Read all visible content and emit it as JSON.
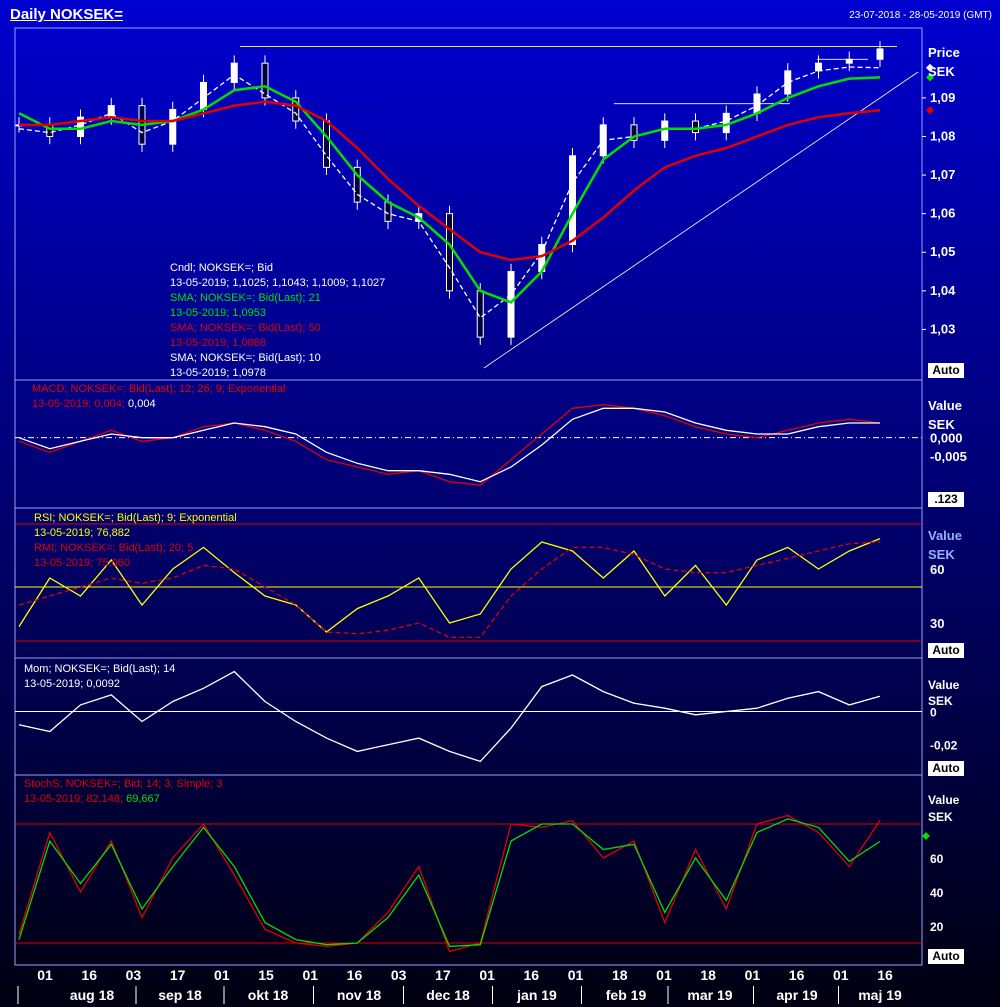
{
  "header": {
    "title": "Daily NOKSEK=",
    "range": "23-07-2018 - 28-05-2019 (GMT)"
  },
  "colors": {
    "bg_top": "#0000cc",
    "bg_bottom": "#000010",
    "green": "#00e000",
    "red": "#e00000",
    "yellow": "#ffff00",
    "white": "#ffffff",
    "frame": "#9aa0ff"
  },
  "panels": {
    "price": {
      "unit_value": "Price",
      "unit_sek": "SEK",
      "auto": "Auto",
      "ticks": [
        "1,09",
        "1,08",
        "1,07",
        "1,06",
        "1,05",
        "1,04",
        "1,03"
      ],
      "legend": [
        {
          "text": "Cndl; NOKSEK=; Bid",
          "color": "#ffffff"
        },
        {
          "text": "13-05-2019; 1,1025; 1,1043; 1,1009; 1,1027",
          "color": "#ffffff"
        },
        {
          "text": "SMA; NOKSEK=; Bid(Last);  21",
          "color": "#00e000"
        },
        {
          "text": "13-05-2019; 1,0953",
          "color": "#00e000"
        },
        {
          "text": "SMA; NOKSEK=; Bid(Last);  50",
          "color": "#e00000"
        },
        {
          "text": "13-05-2019; 1,0868",
          "color": "#e00000"
        },
        {
          "text": "SMA; NOKSEK=; Bid(Last);  10",
          "color": "#ffffff"
        },
        {
          "text": "13-05-2019; 1,0978",
          "color": "#ffffff"
        }
      ]
    },
    "macd": {
      "unit_value": "Value",
      "unit_sek": "SEK",
      "auto": ".123",
      "ticks": [
        "0,000",
        "-0,005"
      ],
      "legend_line1": "MACD; NOKSEK=; Bid(Last);  12; 26; 9; Exponential",
      "legend_line2a": "13-05-2019; 0,004; ",
      "legend_line2b": "0,004"
    },
    "rsi": {
      "unit_value": "Value",
      "unit_sek": "SEK",
      "auto": "Auto",
      "ticks": [
        "60",
        "30"
      ],
      "legend": [
        {
          "text": "RSI; NOKSEK=; Bid(Last);  9; Exponential",
          "color": "#ffff00"
        },
        {
          "text": "13-05-2019; 76,882",
          "color": "#ffff00"
        },
        {
          "text": "RMI; NOKSEK=; Bid(Last);  20; 5",
          "color": "#e00000"
        },
        {
          "text": "13-05-2019; 75,060",
          "color": "#e00000"
        }
      ]
    },
    "mom": {
      "unit_value": "Value",
      "unit_sek": "SEK",
      "auto": "Auto",
      "ticks": [
        "0",
        "-0,02"
      ],
      "legend": [
        {
          "text": "Mom; NOKSEK=; Bid(Last);  14",
          "color": "#ffffff"
        },
        {
          "text": "13-05-2019; 0,0092",
          "color": "#ffffff"
        }
      ]
    },
    "stoch": {
      "unit_value": "Value",
      "unit_sek": "SEK",
      "auto": "Auto",
      "ticks": [
        "60",
        "40",
        "20"
      ],
      "legend_line1": "StochS; NOKSEK=; Bid;  14; 3; Simple; 3",
      "legend_line2a": "13-05-2019; 82,148; ",
      "legend_line2b": "69,667"
    }
  },
  "xaxis": {
    "days": [
      "01",
      "16",
      "03",
      "17",
      "01",
      "15",
      "01",
      "16",
      "03",
      "17",
      "01",
      "16",
      "01",
      "18",
      "01",
      "18",
      "01",
      "16",
      "01",
      "16"
    ],
    "months": [
      "aug 18",
      "sep 18",
      "okt 18",
      "nov 18",
      "dec 18",
      "jan 19",
      "feb 19",
      "mar 19",
      "apr 19",
      "maj 19"
    ]
  },
  "chart_data": [
    {
      "type": "candlestick",
      "title": "Daily NOKSEK=",
      "ylabel": "Price SEK",
      "ylim": [
        1.02,
        1.105
      ],
      "last_candle": {
        "date": "13-05-2019",
        "open": 1.1025,
        "high": 1.1043,
        "low": 1.1009,
        "close": 1.1027
      },
      "x_dates": [
        "2018-07-23",
        "2018-08-01",
        "2018-08-15",
        "2018-09-01",
        "2018-09-12",
        "2018-09-20",
        "2018-10-01",
        "2018-10-10",
        "2018-10-20",
        "2018-11-01",
        "2018-11-12",
        "2018-11-20",
        "2018-12-01",
        "2018-12-10",
        "2018-12-20",
        "2019-01-02",
        "2019-01-10",
        "2019-01-20",
        "2019-02-01",
        "2019-02-10",
        "2019-02-20",
        "2019-03-01",
        "2019-03-10",
        "2019-03-20",
        "2019-04-01",
        "2019-04-10",
        "2019-04-20",
        "2019-05-01",
        "2019-05-13"
      ],
      "close": [
        1.083,
        1.08,
        1.085,
        1.088,
        1.078,
        1.087,
        1.094,
        1.099,
        1.09,
        1.084,
        1.072,
        1.063,
        1.058,
        1.06,
        1.04,
        1.028,
        1.045,
        1.052,
        1.075,
        1.083,
        1.079,
        1.084,
        1.081,
        1.086,
        1.091,
        1.097,
        1.099,
        1.1,
        1.1027
      ],
      "series": [
        {
          "name": "SMA 10",
          "color": "#ffffff",
          "dashed": true,
          "values": [
            1.082,
            1.081,
            1.083,
            1.086,
            1.081,
            1.084,
            1.09,
            1.096,
            1.091,
            1.086,
            1.075,
            1.065,
            1.06,
            1.058,
            1.046,
            1.033,
            1.039,
            1.05,
            1.068,
            1.079,
            1.08,
            1.082,
            1.082,
            1.084,
            1.088,
            1.094,
            1.097,
            1.098,
            1.0978
          ]
        },
        {
          "name": "SMA 21",
          "color": "#00e000",
          "values": [
            1.086,
            1.082,
            1.082,
            1.084,
            1.083,
            1.084,
            1.087,
            1.092,
            1.093,
            1.089,
            1.08,
            1.07,
            1.063,
            1.059,
            1.052,
            1.04,
            1.037,
            1.045,
            1.06,
            1.074,
            1.08,
            1.082,
            1.082,
            1.083,
            1.086,
            1.09,
            1.093,
            1.095,
            1.0953
          ]
        },
        {
          "name": "SMA 50",
          "color": "#e00000",
          "values": [
            1.083,
            1.083,
            1.084,
            1.085,
            1.084,
            1.084,
            1.086,
            1.088,
            1.089,
            1.088,
            1.084,
            1.077,
            1.069,
            1.062,
            1.056,
            1.05,
            1.048,
            1.049,
            1.053,
            1.059,
            1.066,
            1.072,
            1.075,
            1.077,
            1.08,
            1.083,
            1.085,
            1.086,
            1.0868
          ]
        }
      ]
    },
    {
      "type": "line",
      "title": "MACD; NOKSEK=; Bid(Last);  12; 26; 9; Exponential",
      "ylim": [
        -0.017,
        0.013
      ],
      "series": [
        {
          "name": "MACD",
          "color": "#e00000",
          "values": [
            -0.001,
            -0.004,
            -0.001,
            0.002,
            -0.001,
            0.0,
            0.003,
            0.004,
            0.002,
            -0.001,
            -0.006,
            -0.008,
            -0.01,
            -0.009,
            -0.012,
            -0.013,
            -0.006,
            0.001,
            0.008,
            0.009,
            0.008,
            0.006,
            0.003,
            0.001,
            0.0,
            0.002,
            0.004,
            0.005,
            0.004
          ]
        },
        {
          "name": "Signal",
          "color": "#ffffff",
          "values": [
            0.0,
            -0.003,
            -0.001,
            0.001,
            0.0,
            0.0,
            0.002,
            0.004,
            0.003,
            0.001,
            -0.004,
            -0.007,
            -0.009,
            -0.009,
            -0.01,
            -0.012,
            -0.008,
            -0.002,
            0.005,
            0.008,
            0.008,
            0.007,
            0.004,
            0.002,
            0.001,
            0.001,
            0.003,
            0.004,
            0.004
          ]
        }
      ]
    },
    {
      "type": "line",
      "title": "RSI; NOKSEK=; Bid(Last);  9; Exponential",
      "ylim": [
        15,
        90
      ],
      "series": [
        {
          "name": "RSI",
          "color": "#ffff00",
          "values": [
            28,
            55,
            45,
            65,
            40,
            60,
            72,
            58,
            45,
            40,
            25,
            38,
            45,
            55,
            30,
            35,
            60,
            75,
            70,
            55,
            70,
            45,
            62,
            40,
            65,
            72,
            60,
            70,
            76.9
          ]
        },
        {
          "name": "RMI",
          "color": "#e00000",
          "dashed": true,
          "values": [
            40,
            45,
            50,
            55,
            52,
            55,
            62,
            60,
            50,
            40,
            25,
            24,
            26,
            30,
            22,
            22,
            45,
            60,
            72,
            72,
            68,
            60,
            58,
            58,
            62,
            66,
            70,
            74,
            75.1
          ]
        }
      ]
    },
    {
      "type": "line",
      "title": "Mom; NOKSEK=; Bid(Last);  14",
      "ylim": [
        -0.034,
        0.028
      ],
      "series": [
        {
          "name": "Mom",
          "color": "#ffffff",
          "values": [
            -0.008,
            -0.012,
            0.004,
            0.01,
            -0.006,
            0.006,
            0.014,
            0.024,
            0.006,
            -0.006,
            -0.016,
            -0.024,
            -0.02,
            -0.016,
            -0.024,
            -0.03,
            -0.01,
            0.015,
            0.022,
            0.012,
            0.005,
            0.002,
            -0.002,
            0.0,
            0.002,
            0.008,
            0.012,
            0.004,
            0.0092
          ]
        }
      ]
    },
    {
      "type": "line",
      "title": "StochS; NOKSEK=; Bid;  14; 3; Simple; 3",
      "ylim": [
        0,
        100
      ],
      "series": [
        {
          "name": "%K",
          "color": "#e00000",
          "values": [
            15,
            75,
            40,
            70,
            25,
            60,
            80,
            50,
            18,
            10,
            8,
            10,
            28,
            55,
            5,
            10,
            80,
            78,
            82,
            60,
            70,
            22,
            65,
            30,
            80,
            85,
            75,
            55,
            82.1
          ]
        },
        {
          "name": "%D",
          "color": "#00e000",
          "values": [
            12,
            70,
            45,
            68,
            30,
            55,
            78,
            55,
            22,
            12,
            9,
            10,
            25,
            50,
            8,
            9,
            70,
            80,
            80,
            65,
            68,
            28,
            60,
            35,
            75,
            83,
            78,
            58,
            69.7
          ]
        }
      ]
    }
  ]
}
